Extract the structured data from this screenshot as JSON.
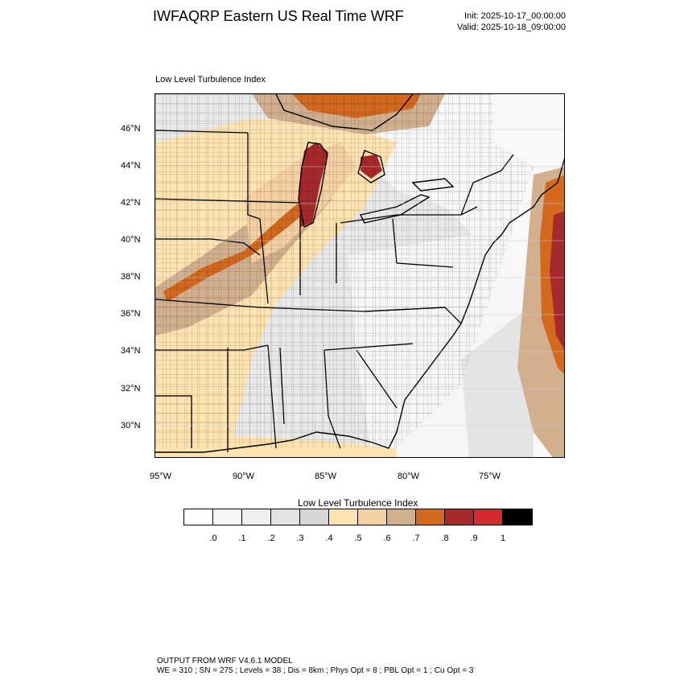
{
  "header": {
    "title": "IWFAQRP Eastern US Real Time WRF",
    "init": "Init: 2025-10-17_00:00:00",
    "valid": "Valid: 2025-10-18_09:00:00"
  },
  "map": {
    "subtitle": "Low Level Turbulence Index",
    "lat_ticks": [
      "46°N",
      "44°N",
      "42°N",
      "40°N",
      "38°N",
      "36°N",
      "34°N",
      "32°N",
      "30°N"
    ],
    "lon_ticks": [
      "95°W",
      "90°W",
      "85°W",
      "80°W",
      "75°W"
    ],
    "features": [
      "county-boundaries",
      "state-boundaries",
      "coastline",
      "great-lakes"
    ]
  },
  "colorbar": {
    "title": "Low Level Turbulence Index",
    "colors": [
      "#ffffff",
      "#f7f7f7",
      "#efefef",
      "#e3e3e3",
      "#d6d6d6",
      "#ffe3b0",
      "#f5d0a2",
      "#d2b08e",
      "#d2691e",
      "#a8292c",
      "#d32b2b",
      "#000000"
    ],
    "labels": [
      ".0",
      ".1",
      ".2",
      ".3",
      ".4",
      ".5",
      ".6",
      ".7",
      ".8",
      ".9",
      "1"
    ]
  },
  "footer": {
    "line1": "OUTPUT FROM WRF V4.6.1 MODEL",
    "line2": "WE = 310 ; SN = 275 ; Levels = 38 ; Dis = 8km ; Phys Opt = 8 ; PBL Opt = 1 ; Cu Opt = 3"
  }
}
